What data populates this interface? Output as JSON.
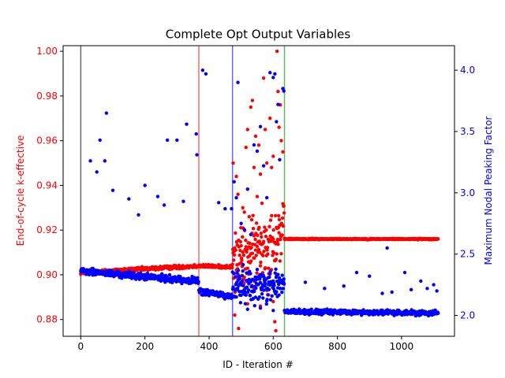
{
  "chart_data": {
    "type": "scatter",
    "title": "Complete Opt Output Variables",
    "xlabel": "ID - Iteration #",
    "ylabel_left": "End-of-cycle k-effective",
    "ylabel_right": "Maximum Nodal Peaking Factor",
    "xlim": [
      -55,
      1165
    ],
    "ylim_left": [
      0.8725,
      1.0025
    ],
    "ylim_right": [
      1.83,
      4.2
    ],
    "x_ticks": [
      0,
      200,
      400,
      600,
      800,
      1000
    ],
    "x_tick_labels": [
      "0",
      "200",
      "400",
      "600",
      "800",
      "1000"
    ],
    "y_left_ticks": [
      0.88,
      0.9,
      0.92,
      0.94,
      0.96,
      0.98,
      1.0
    ],
    "y_left_tick_labels": [
      "0.88",
      "0.90",
      "0.92",
      "0.94",
      "0.96",
      "0.98",
      "1.00"
    ],
    "y_right_ticks": [
      2.0,
      2.5,
      3.0,
      3.5,
      4.0
    ],
    "y_right_tick_labels": [
      "2.0",
      "2.5",
      "3.0",
      "3.5",
      "4.0"
    ],
    "grid": false,
    "colors": {
      "left_axis": "#ff0000",
      "right_axis": "#0000ff",
      "series_k": "#ff0000",
      "series_peaking": "#0000ff"
    },
    "vertical_lines": [
      {
        "x": 0,
        "color": "#000000"
      },
      {
        "x": 368,
        "color": "#ff0000"
      },
      {
        "x": 473,
        "color": "#0000ff"
      },
      {
        "x": 635,
        "color": "#008000"
      }
    ],
    "series": [
      {
        "axis": "left",
        "color": "#ff0000",
        "segments": [
          {
            "x_range": [
              0,
              368
            ],
            "baseline": [
              0.901,
              0.904
            ],
            "spread": 0.0012
          },
          {
            "x_range": [
              368,
              473
            ],
            "baseline": [
              0.904,
              0.9035
            ],
            "spread": 0.001
          },
          {
            "x_range": [
              473,
              635
            ],
            "baseline": [
              0.905,
              0.92
            ],
            "spread": 0.02
          },
          {
            "x_range": [
              635,
              1115
            ],
            "baseline": [
              0.916,
              0.916
            ],
            "spread": 0.0004
          }
        ],
        "outliers": [
          [
            475,
            0.95
          ],
          [
            480,
            0.882
          ],
          [
            485,
            0.944
          ],
          [
            490,
            0.936
          ],
          [
            492,
            0.876
          ],
          [
            500,
            0.913
          ],
          [
            505,
            0.93
          ],
          [
            510,
            0.928
          ],
          [
            515,
            0.957
          ],
          [
            520,
            0.965
          ],
          [
            525,
            0.926
          ],
          [
            530,
            0.975
          ],
          [
            535,
            0.978
          ],
          [
            540,
            0.948
          ],
          [
            545,
            0.962
          ],
          [
            550,
            0.935
          ],
          [
            555,
            0.958
          ],
          [
            560,
            0.945
          ],
          [
            565,
            0.932
          ],
          [
            570,
            0.988
          ],
          [
            575,
            0.965
          ],
          [
            580,
            0.95
          ],
          [
            585,
            0.891
          ],
          [
            590,
            0.97
          ],
          [
            595,
            0.948
          ],
          [
            600,
            0.953
          ],
          [
            605,
            0.879
          ],
          [
            608,
            0.875
          ],
          [
            612,
            1.0
          ],
          [
            615,
            0.982
          ],
          [
            618,
            0.966
          ],
          [
            622,
            0.976
          ],
          [
            625,
            0.96
          ],
          [
            630,
            0.955
          ],
          [
            520,
            0.887
          ],
          [
            560,
            0.886
          ],
          [
            600,
            0.888
          ],
          [
            540,
            0.894
          ],
          [
            500,
            0.896
          ],
          [
            580,
            0.893
          ]
        ]
      },
      {
        "axis": "right",
        "color": "#0000ff",
        "segments": [
          {
            "x_range": [
              0,
              368
            ],
            "baseline": [
              2.36,
              2.28
            ],
            "spread": 0.04
          },
          {
            "x_range": [
              368,
              473
            ],
            "baseline": [
              2.2,
              2.15
            ],
            "spread": 0.04
          },
          {
            "x_range": [
              473,
              635
            ],
            "baseline": [
              2.25,
              2.25
            ],
            "spread": 0.2
          },
          {
            "x_range": [
              635,
              1115
            ],
            "baseline": [
              2.03,
              2.02
            ],
            "spread": 0.03
          }
        ],
        "outliers": [
          [
            30,
            3.26
          ],
          [
            50,
            3.17
          ],
          [
            60,
            3.43
          ],
          [
            75,
            3.26
          ],
          [
            80,
            3.65
          ],
          [
            100,
            3.02
          ],
          [
            150,
            2.95
          ],
          [
            180,
            2.82
          ],
          [
            200,
            3.06
          ],
          [
            240,
            2.97
          ],
          [
            260,
            2.9
          ],
          [
            270,
            3.43
          ],
          [
            300,
            3.43
          ],
          [
            320,
            2.93
          ],
          [
            330,
            3.56
          ],
          [
            360,
            3.48
          ],
          [
            362,
            3.31
          ],
          [
            380,
            4.0
          ],
          [
            390,
            3.97
          ],
          [
            430,
            2.92
          ],
          [
            450,
            2.87
          ],
          [
            470,
            2.87
          ],
          [
            478,
            3.09
          ],
          [
            485,
            2.96
          ],
          [
            490,
            3.9
          ],
          [
            500,
            2.75
          ],
          [
            510,
            2.7
          ],
          [
            520,
            3.03
          ],
          [
            530,
            2.66
          ],
          [
            540,
            3.39
          ],
          [
            550,
            3.34
          ],
          [
            560,
            3.54
          ],
          [
            570,
            3.22
          ],
          [
            580,
            2.96
          ],
          [
            590,
            3.98
          ],
          [
            600,
            3.94
          ],
          [
            605,
            3.97
          ],
          [
            610,
            3.58
          ],
          [
            615,
            3.72
          ],
          [
            620,
            3.27
          ],
          [
            630,
            3.85
          ],
          [
            633,
            3.83
          ],
          [
            520,
            2.05
          ],
          [
            560,
            2.06
          ],
          [
            600,
            2.04
          ],
          [
            955,
            2.55
          ],
          [
            1010,
            2.35
          ],
          [
            1060,
            2.28
          ],
          [
            1100,
            2.25
          ],
          [
            900,
            2.32
          ],
          [
            860,
            2.35
          ],
          [
            820,
            2.24
          ],
          [
            760,
            2.22
          ],
          [
            700,
            2.27
          ],
          [
            1030,
            2.21
          ],
          [
            1080,
            2.22
          ],
          [
            970,
            2.19
          ],
          [
            940,
            2.18
          ],
          [
            1110,
            2.2
          ]
        ]
      }
    ]
  }
}
